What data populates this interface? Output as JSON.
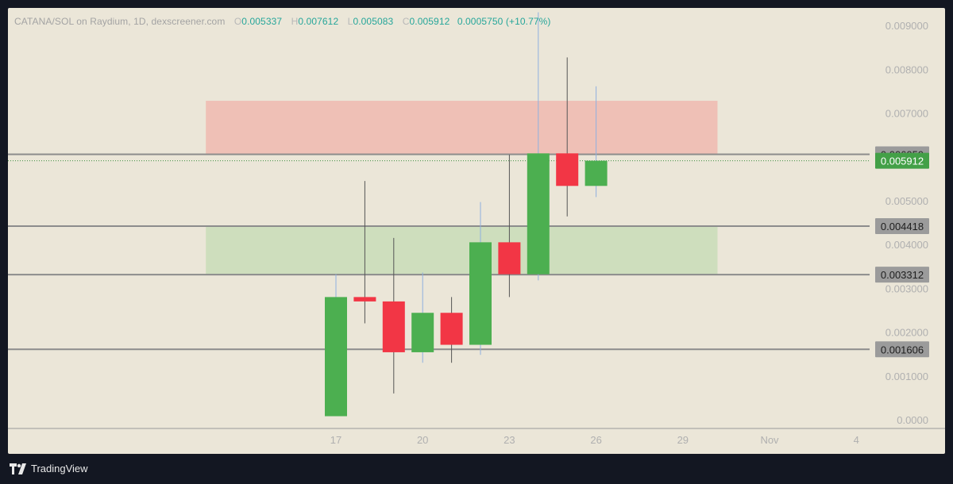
{
  "legend": {
    "pair": "CATANA/SOL on Raydium, 1D, dexscreener.com",
    "open_key": "O",
    "open": "0.005337",
    "high_key": "H",
    "high": "0.007612",
    "low_key": "L",
    "low": "0.005083",
    "close_key": "C",
    "close": "0.005912",
    "change": "0.0005750 (+10.77%)"
  },
  "footer": {
    "brand": "TradingView"
  },
  "chart_data": {
    "type": "candlestick",
    "ylim": [
      -0.0002,
      0.0094
    ],
    "y_ticks": [
      {
        "value": 0.0,
        "label": "0.0000"
      },
      {
        "value": 0.001,
        "label": "0.001000"
      },
      {
        "value": 0.002,
        "label": "0.002000"
      },
      {
        "value": 0.003,
        "label": "0.003000"
      },
      {
        "value": 0.004,
        "label": "0.004000"
      },
      {
        "value": 0.005,
        "label": "0.005000"
      },
      {
        "value": 0.007,
        "label": "0.007000"
      },
      {
        "value": 0.008,
        "label": "0.008000"
      },
      {
        "value": 0.009,
        "label": "0.009000"
      }
    ],
    "x_ticks": [
      {
        "day": 17,
        "label": "17"
      },
      {
        "day": 20,
        "label": "20"
      },
      {
        "day": 23,
        "label": "23"
      },
      {
        "day": 26,
        "label": "26"
      },
      {
        "day": 29,
        "label": "29"
      },
      {
        "day": 32,
        "label": "Nov"
      },
      {
        "day": 35,
        "label": "4"
      }
    ],
    "candles": [
      {
        "day": 17,
        "open": 8e-05,
        "high": 0.00332,
        "low": 8e-05,
        "close": 0.0028
      },
      {
        "day": 18,
        "open": 0.0028,
        "high": 0.00545,
        "low": 0.0022,
        "close": 0.0027
      },
      {
        "day": 19,
        "open": 0.0027,
        "high": 0.00415,
        "low": 0.0006,
        "close": 0.00154
      },
      {
        "day": 20,
        "open": 0.00154,
        "high": 0.00336,
        "low": 0.0013,
        "close": 0.00244
      },
      {
        "day": 21,
        "open": 0.00244,
        "high": 0.0028,
        "low": 0.0013,
        "close": 0.00171
      },
      {
        "day": 22,
        "open": 0.00171,
        "high": 0.00497,
        "low": 0.00148,
        "close": 0.00405
      },
      {
        "day": 23,
        "open": 0.00405,
        "high": 0.00605,
        "low": 0.0028,
        "close": 0.00332
      },
      {
        "day": 24,
        "open": 0.00332,
        "high": 0.0093,
        "low": 0.00318,
        "close": 0.00608
      },
      {
        "day": 25,
        "open": 0.00608,
        "high": 0.00827,
        "low": 0.00464,
        "close": 0.005337
      },
      {
        "day": 26,
        "open": 0.005337,
        "high": 0.007612,
        "low": 0.005083,
        "close": 0.005912
      }
    ],
    "zones": [
      {
        "name": "resistance",
        "y_from": 0.00606,
        "y_to": 0.00728,
        "day_from": 12.5,
        "day_to": 30.2,
        "color": "#f0b8b0"
      },
      {
        "name": "support",
        "y_from": 0.00331,
        "y_to": 0.00442,
        "day_from": 12.5,
        "day_to": 30.2,
        "color": "#c9dcb8"
      }
    ],
    "levels": [
      {
        "value": 0.006059,
        "label": "0.006059"
      },
      {
        "value": 0.004418,
        "label": "0.004418"
      },
      {
        "value": 0.003312,
        "label": "0.003312"
      },
      {
        "value": 0.001606,
        "label": "0.001606"
      }
    ],
    "last_price": {
      "value": 0.005912,
      "label": "0.005912"
    },
    "colors": {
      "up": "#4caf50",
      "down": "#f23645",
      "wick": "#8fb0e0",
      "wick_down": "#555555",
      "level_line": "#8c8c8c",
      "level_label_bg": "#9b9b9b",
      "last_label_bg": "#43a047",
      "axis_text": "#b0b0b0",
      "background": "#ebe6d8"
    }
  }
}
